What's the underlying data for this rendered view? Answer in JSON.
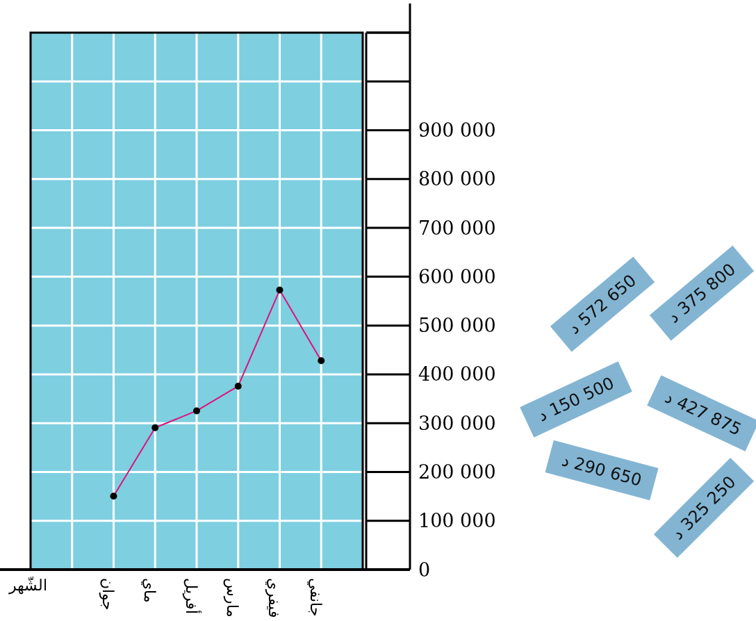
{
  "chart_data": {
    "type": "line",
    "xlabel": "الشّهر",
    "categories": [
      null,
      null,
      "جوان",
      "ماي",
      "أفريل",
      "مارس",
      "فيفري",
      "جانفي",
      null
    ],
    "series": [
      {
        "color": "#e0107a",
        "values": [
          null,
          null,
          150500,
          290650,
          325250,
          375800,
          572650,
          427875,
          null
        ]
      }
    ],
    "marker": "circle",
    "line_style": "solid",
    "grid": true,
    "ylim": [
      0,
      1100000
    ],
    "yticks": [
      0,
      {
        "value": 100000,
        "label": "100 000"
      },
      {
        "value": 200000,
        "label": "200 000"
      },
      {
        "value": 300000,
        "label": "300 000"
      },
      {
        "value": 400000,
        "label": "400 000"
      },
      {
        "value": 500000,
        "label": "500 000"
      },
      {
        "value": 600000,
        "label": "600 000"
      },
      {
        "value": 700000,
        "label": "700 000"
      },
      {
        "value": 800000,
        "label": "800 000"
      },
      {
        "value": 900000,
        "label": "900 000"
      },
      {
        "value": 1000000,
        "label": null
      },
      {
        "value": 1100000,
        "label": null
      }
    ],
    "annotations": [
      "د 572 650",
      "د 375 800",
      "د 150 500",
      "د 427 875",
      "د 290 650",
      "د 325 250"
    ]
  }
}
